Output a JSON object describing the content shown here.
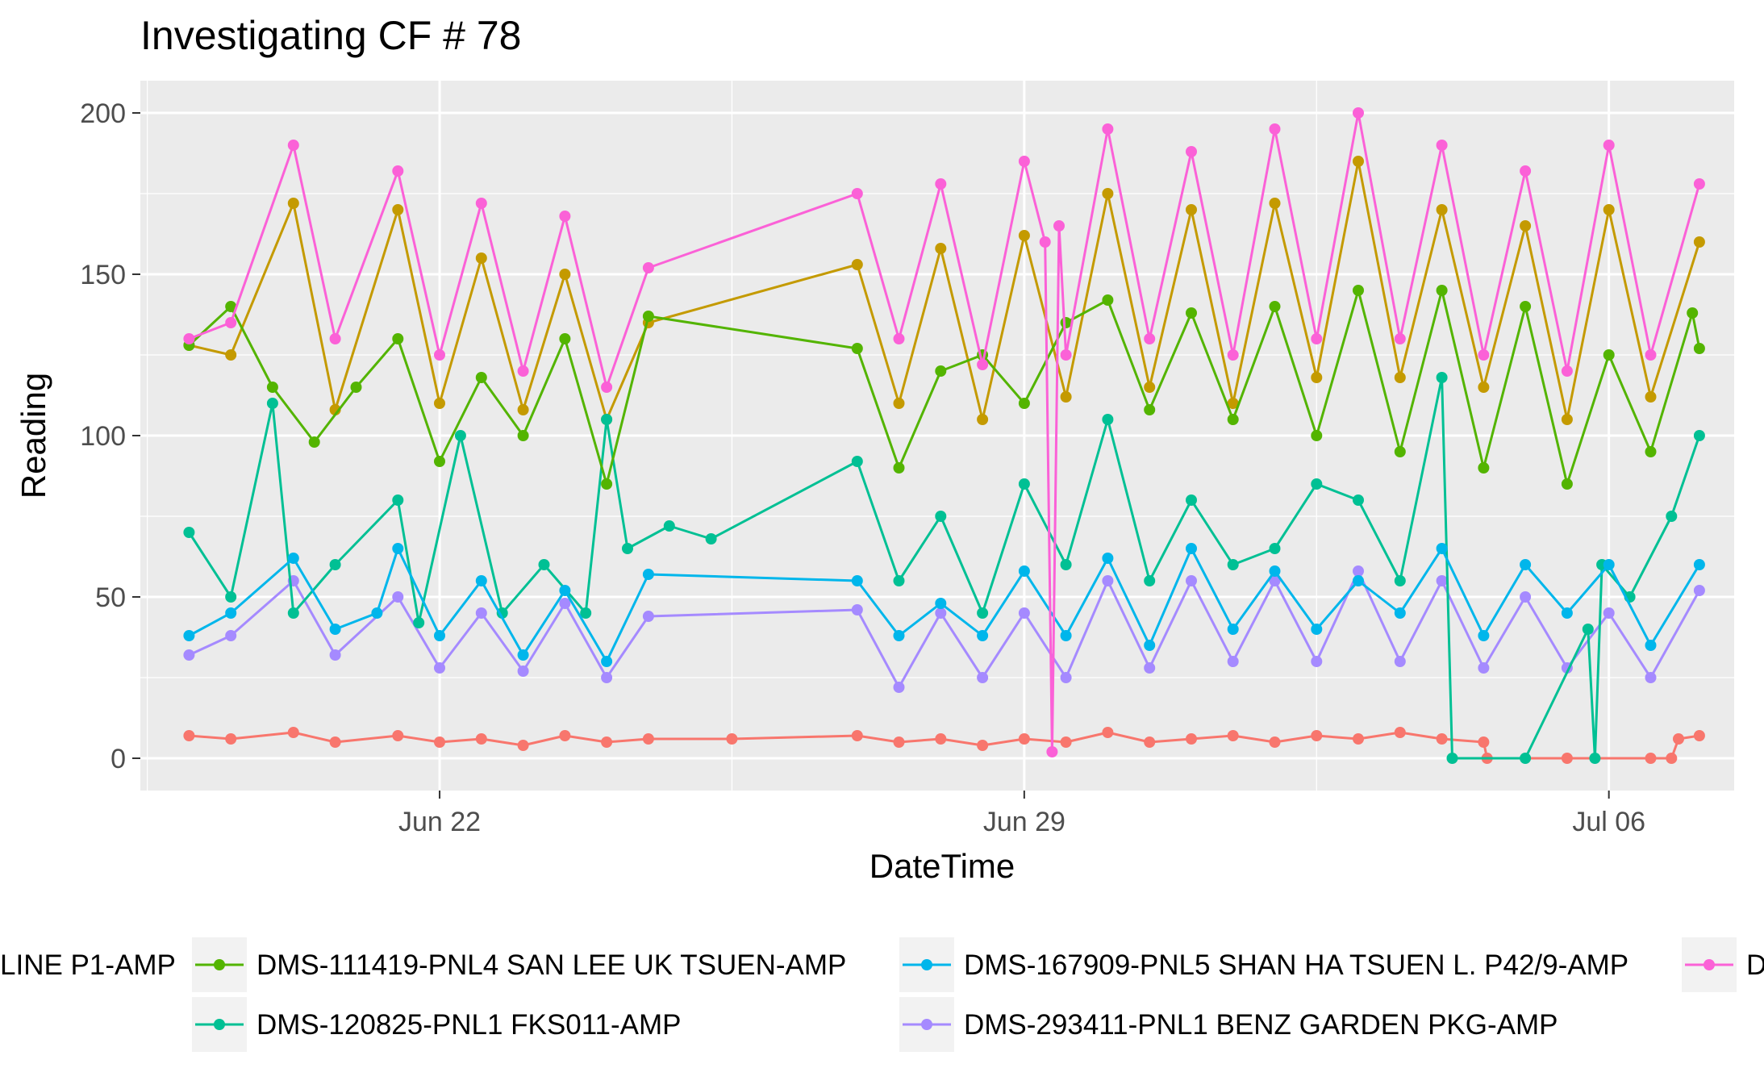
{
  "chart_data": {
    "type": "line",
    "title": "Investigating CF # 78",
    "xlabel": "DateTime",
    "ylabel": "Reading",
    "x_ticks": [
      "Jun 22",
      "Jun 29",
      "Jul 06"
    ],
    "y_ticks": [
      0,
      50,
      100,
      150,
      200
    ],
    "xlim": [
      "2019-06-18T10:00",
      "2019-07-07T12:00"
    ],
    "ylim": [
      -10,
      210
    ],
    "grid": true,
    "legend_position": "bottom",
    "series": [
      {
        "name": "LINE P1-AMP",
        "color": "#F8766D",
        "points": [
          [
            "2019-06-19T00:00",
            7
          ],
          [
            "2019-06-19T12:00",
            6
          ],
          [
            "2019-06-20T06:00",
            8
          ],
          [
            "2019-06-20T18:00",
            5
          ],
          [
            "2019-06-21T12:00",
            7
          ],
          [
            "2019-06-22T00:00",
            5
          ],
          [
            "2019-06-22T12:00",
            6
          ],
          [
            "2019-06-23T00:00",
            4
          ],
          [
            "2019-06-23T12:00",
            7
          ],
          [
            "2019-06-24T00:00",
            5
          ],
          [
            "2019-06-24T12:00",
            6
          ],
          [
            "2019-06-25T12:00",
            6
          ],
          [
            "2019-06-27T00:00",
            7
          ],
          [
            "2019-06-27T12:00",
            5
          ],
          [
            "2019-06-28T00:00",
            6
          ],
          [
            "2019-06-28T12:00",
            4
          ],
          [
            "2019-06-29T00:00",
            6
          ],
          [
            "2019-06-29T12:00",
            5
          ],
          [
            "2019-06-30T00:00",
            8
          ],
          [
            "2019-06-30T12:00",
            5
          ],
          [
            "2019-07-01T00:00",
            6
          ],
          [
            "2019-07-01T12:00",
            7
          ],
          [
            "2019-07-02T00:00",
            5
          ],
          [
            "2019-07-02T12:00",
            7
          ],
          [
            "2019-07-03T00:00",
            6
          ],
          [
            "2019-07-03T12:00",
            8
          ],
          [
            "2019-07-04T00:00",
            6
          ],
          [
            "2019-07-04T12:00",
            5
          ],
          [
            "2019-07-04T13:00",
            0
          ],
          [
            "2019-07-05T12:00",
            0
          ],
          [
            "2019-07-06T12:00",
            0
          ],
          [
            "2019-07-06T18:00",
            0
          ],
          [
            "2019-07-06T20:00",
            6
          ],
          [
            "2019-07-07T02:00",
            7
          ]
        ]
      },
      {
        "name": "DMS-111419-PNL4 SAN LEE UK TSUEN-AMP",
        "color": "#53B400",
        "points": [
          [
            "2019-06-19T00:00",
            128
          ],
          [
            "2019-06-19T12:00",
            140
          ],
          [
            "2019-06-20T00:00",
            115
          ],
          [
            "2019-06-20T12:00",
            98
          ],
          [
            "2019-06-21T00:00",
            115
          ],
          [
            "2019-06-21T12:00",
            130
          ],
          [
            "2019-06-22T00:00",
            92
          ],
          [
            "2019-06-22T12:00",
            118
          ],
          [
            "2019-06-23T00:00",
            100
          ],
          [
            "2019-06-23T12:00",
            130
          ],
          [
            "2019-06-24T00:00",
            85
          ],
          [
            "2019-06-24T12:00",
            137
          ],
          [
            "2019-06-27T00:00",
            127
          ],
          [
            "2019-06-27T12:00",
            90
          ],
          [
            "2019-06-28T00:00",
            120
          ],
          [
            "2019-06-28T12:00",
            125
          ],
          [
            "2019-06-29T00:00",
            110
          ],
          [
            "2019-06-29T12:00",
            135
          ],
          [
            "2019-06-30T00:00",
            142
          ],
          [
            "2019-06-30T12:00",
            108
          ],
          [
            "2019-07-01T00:00",
            138
          ],
          [
            "2019-07-01T12:00",
            105
          ],
          [
            "2019-07-02T00:00",
            140
          ],
          [
            "2019-07-02T12:00",
            100
          ],
          [
            "2019-07-03T00:00",
            145
          ],
          [
            "2019-07-03T12:00",
            95
          ],
          [
            "2019-07-04T00:00",
            145
          ],
          [
            "2019-07-04T12:00",
            90
          ],
          [
            "2019-07-05T00:00",
            140
          ],
          [
            "2019-07-05T12:00",
            85
          ],
          [
            "2019-07-06T00:00",
            125
          ],
          [
            "2019-07-06T12:00",
            95
          ],
          [
            "2019-07-07T00:00",
            138
          ],
          [
            "2019-07-07T02:00",
            127
          ]
        ]
      },
      {
        "name": "DMS-120825-PNL1 FKS011-AMP",
        "color": "#00C094",
        "points": [
          [
            "2019-06-19T00:00",
            70
          ],
          [
            "2019-06-19T12:00",
            50
          ],
          [
            "2019-06-20T00:00",
            110
          ],
          [
            "2019-06-20T06:00",
            45
          ],
          [
            "2019-06-20T18:00",
            60
          ],
          [
            "2019-06-21T12:00",
            80
          ],
          [
            "2019-06-21T18:00",
            42
          ],
          [
            "2019-06-22T06:00",
            100
          ],
          [
            "2019-06-22T18:00",
            45
          ],
          [
            "2019-06-23T06:00",
            60
          ],
          [
            "2019-06-23T18:00",
            45
          ],
          [
            "2019-06-24T00:00",
            105
          ],
          [
            "2019-06-24T06:00",
            65
          ],
          [
            "2019-06-24T18:00",
            72
          ],
          [
            "2019-06-25T06:00",
            68
          ],
          [
            "2019-06-27T00:00",
            92
          ],
          [
            "2019-06-27T12:00",
            55
          ],
          [
            "2019-06-28T00:00",
            75
          ],
          [
            "2019-06-28T12:00",
            45
          ],
          [
            "2019-06-29T00:00",
            85
          ],
          [
            "2019-06-29T12:00",
            60
          ],
          [
            "2019-06-30T00:00",
            105
          ],
          [
            "2019-06-30T12:00",
            55
          ],
          [
            "2019-07-01T00:00",
            80
          ],
          [
            "2019-07-01T12:00",
            60
          ],
          [
            "2019-07-02T00:00",
            65
          ],
          [
            "2019-07-02T12:00",
            85
          ],
          [
            "2019-07-03T00:00",
            80
          ],
          [
            "2019-07-03T12:00",
            55
          ],
          [
            "2019-07-04T00:00",
            118
          ],
          [
            "2019-07-04T03:00",
            0
          ],
          [
            "2019-07-05T00:00",
            0
          ],
          [
            "2019-07-05T18:00",
            40
          ],
          [
            "2019-07-05T20:00",
            0
          ],
          [
            "2019-07-05T22:00",
            60
          ],
          [
            "2019-07-06T06:00",
            50
          ],
          [
            "2019-07-06T18:00",
            75
          ],
          [
            "2019-07-07T02:00",
            100
          ]
        ]
      },
      {
        "name": "DMS-167909-PNL5 SHAN HA TSUEN L. P42/9-AMP",
        "color": "#00B6EB",
        "points": [
          [
            "2019-06-19T00:00",
            38
          ],
          [
            "2019-06-19T12:00",
            45
          ],
          [
            "2019-06-20T06:00",
            62
          ],
          [
            "2019-06-20T18:00",
            40
          ],
          [
            "2019-06-21T06:00",
            45
          ],
          [
            "2019-06-21T12:00",
            65
          ],
          [
            "2019-06-22T00:00",
            38
          ],
          [
            "2019-06-22T12:00",
            55
          ],
          [
            "2019-06-23T00:00",
            32
          ],
          [
            "2019-06-23T12:00",
            52
          ],
          [
            "2019-06-24T00:00",
            30
          ],
          [
            "2019-06-24T12:00",
            57
          ],
          [
            "2019-06-27T00:00",
            55
          ],
          [
            "2019-06-27T12:00",
            38
          ],
          [
            "2019-06-28T00:00",
            48
          ],
          [
            "2019-06-28T12:00",
            38
          ],
          [
            "2019-06-29T00:00",
            58
          ],
          [
            "2019-06-29T12:00",
            38
          ],
          [
            "2019-06-30T00:00",
            62
          ],
          [
            "2019-06-30T12:00",
            35
          ],
          [
            "2019-07-01T00:00",
            65
          ],
          [
            "2019-07-01T12:00",
            40
          ],
          [
            "2019-07-02T00:00",
            58
          ],
          [
            "2019-07-02T12:00",
            40
          ],
          [
            "2019-07-03T00:00",
            55
          ],
          [
            "2019-07-03T12:00",
            45
          ],
          [
            "2019-07-04T00:00",
            65
          ],
          [
            "2019-07-04T12:00",
            38
          ],
          [
            "2019-07-05T00:00",
            60
          ],
          [
            "2019-07-05T12:00",
            45
          ],
          [
            "2019-07-06T00:00",
            60
          ],
          [
            "2019-07-06T12:00",
            35
          ],
          [
            "2019-07-07T02:00",
            60
          ]
        ]
      },
      {
        "name": "DMS-293411-PNL1 BENZ GARDEN PKG-AMP",
        "color": "#A58AFF",
        "points": [
          [
            "2019-06-19T00:00",
            32
          ],
          [
            "2019-06-19T12:00",
            38
          ],
          [
            "2019-06-20T06:00",
            55
          ],
          [
            "2019-06-20T18:00",
            32
          ],
          [
            "2019-06-21T12:00",
            50
          ],
          [
            "2019-06-22T00:00",
            28
          ],
          [
            "2019-06-22T12:00",
            45
          ],
          [
            "2019-06-23T00:00",
            27
          ],
          [
            "2019-06-23T12:00",
            48
          ],
          [
            "2019-06-24T00:00",
            25
          ],
          [
            "2019-06-24T12:00",
            44
          ],
          [
            "2019-06-27T00:00",
            46
          ],
          [
            "2019-06-27T12:00",
            22
          ],
          [
            "2019-06-28T00:00",
            45
          ],
          [
            "2019-06-28T12:00",
            25
          ],
          [
            "2019-06-29T00:00",
            45
          ],
          [
            "2019-06-29T12:00",
            25
          ],
          [
            "2019-06-30T00:00",
            55
          ],
          [
            "2019-06-30T12:00",
            28
          ],
          [
            "2019-07-01T00:00",
            55
          ],
          [
            "2019-07-01T12:00",
            30
          ],
          [
            "2019-07-02T00:00",
            55
          ],
          [
            "2019-07-02T12:00",
            30
          ],
          [
            "2019-07-03T00:00",
            58
          ],
          [
            "2019-07-03T12:00",
            30
          ],
          [
            "2019-07-04T00:00",
            55
          ],
          [
            "2019-07-04T12:00",
            28
          ],
          [
            "2019-07-05T00:00",
            50
          ],
          [
            "2019-07-05T12:00",
            28
          ],
          [
            "2019-07-06T00:00",
            45
          ],
          [
            "2019-07-06T12:00",
            25
          ],
          [
            "2019-07-07T02:00",
            52
          ]
        ]
      },
      {
        "name": "D",
        "color": "#FB61D7",
        "points": [
          [
            "2019-06-19T00:00",
            130
          ],
          [
            "2019-06-19T12:00",
            135
          ],
          [
            "2019-06-20T06:00",
            190
          ],
          [
            "2019-06-20T18:00",
            130
          ],
          [
            "2019-06-21T12:00",
            182
          ],
          [
            "2019-06-22T00:00",
            125
          ],
          [
            "2019-06-22T12:00",
            172
          ],
          [
            "2019-06-23T00:00",
            120
          ],
          [
            "2019-06-23T12:00",
            168
          ],
          [
            "2019-06-24T00:00",
            115
          ],
          [
            "2019-06-24T12:00",
            152
          ],
          [
            "2019-06-27T00:00",
            175
          ],
          [
            "2019-06-27T12:00",
            130
          ],
          [
            "2019-06-28T00:00",
            178
          ],
          [
            "2019-06-28T12:00",
            122
          ],
          [
            "2019-06-29T00:00",
            185
          ],
          [
            "2019-06-29T06:00",
            160
          ],
          [
            "2019-06-29T08:00",
            2
          ],
          [
            "2019-06-29T10:00",
            165
          ],
          [
            "2019-06-29T12:00",
            125
          ],
          [
            "2019-06-30T00:00",
            195
          ],
          [
            "2019-06-30T12:00",
            130
          ],
          [
            "2019-07-01T00:00",
            188
          ],
          [
            "2019-07-01T12:00",
            125
          ],
          [
            "2019-07-02T00:00",
            195
          ],
          [
            "2019-07-02T12:00",
            130
          ],
          [
            "2019-07-03T00:00",
            200
          ],
          [
            "2019-07-03T12:00",
            130
          ],
          [
            "2019-07-04T00:00",
            190
          ],
          [
            "2019-07-04T12:00",
            125
          ],
          [
            "2019-07-05T00:00",
            182
          ],
          [
            "2019-07-05T12:00",
            120
          ],
          [
            "2019-07-06T00:00",
            190
          ],
          [
            "2019-07-06T12:00",
            125
          ],
          [
            "2019-07-07T02:00",
            178
          ]
        ]
      },
      {
        "name": "",
        "color": "#C49A00",
        "points": [
          [
            "2019-06-19T00:00",
            128
          ],
          [
            "2019-06-19T12:00",
            125
          ],
          [
            "2019-06-20T06:00",
            172
          ],
          [
            "2019-06-20T18:00",
            108
          ],
          [
            "2019-06-21T12:00",
            170
          ],
          [
            "2019-06-22T00:00",
            110
          ],
          [
            "2019-06-22T12:00",
            155
          ],
          [
            "2019-06-23T00:00",
            108
          ],
          [
            "2019-06-23T12:00",
            150
          ],
          [
            "2019-06-24T00:00",
            105
          ],
          [
            "2019-06-24T12:00",
            135
          ],
          [
            "2019-06-27T00:00",
            153
          ],
          [
            "2019-06-27T12:00",
            110
          ],
          [
            "2019-06-28T00:00",
            158
          ],
          [
            "2019-06-28T12:00",
            105
          ],
          [
            "2019-06-29T00:00",
            162
          ],
          [
            "2019-06-29T12:00",
            112
          ],
          [
            "2019-06-30T00:00",
            175
          ],
          [
            "2019-06-30T12:00",
            115
          ],
          [
            "2019-07-01T00:00",
            170
          ],
          [
            "2019-07-01T12:00",
            110
          ],
          [
            "2019-07-02T00:00",
            172
          ],
          [
            "2019-07-02T12:00",
            118
          ],
          [
            "2019-07-03T00:00",
            185
          ],
          [
            "2019-07-03T12:00",
            118
          ],
          [
            "2019-07-04T00:00",
            170
          ],
          [
            "2019-07-04T12:00",
            115
          ],
          [
            "2019-07-05T00:00",
            165
          ],
          [
            "2019-07-05T12:00",
            105
          ],
          [
            "2019-07-06T00:00",
            170
          ],
          [
            "2019-07-06T12:00",
            112
          ],
          [
            "2019-07-07T02:00",
            160
          ]
        ]
      }
    ],
    "legend": {
      "row1": [
        {
          "label": "LINE P1-AMP",
          "color": "#F8766D"
        },
        {
          "label": "DMS-111419-PNL4 SAN LEE UK TSUEN-AMP",
          "color": "#53B400"
        },
        {
          "label": "DMS-167909-PNL5 SHAN HA TSUEN L. P42/9-AMP",
          "color": "#00B6EB"
        },
        {
          "label": "D",
          "color": "#FB61D7"
        }
      ],
      "row2": [
        {
          "label": "DMS-120825-PNL1 FKS011-AMP",
          "color": "#00C094"
        },
        {
          "label": "DMS-293411-PNL1 BENZ GARDEN PKG-AMP",
          "color": "#A58AFF"
        }
      ]
    }
  }
}
